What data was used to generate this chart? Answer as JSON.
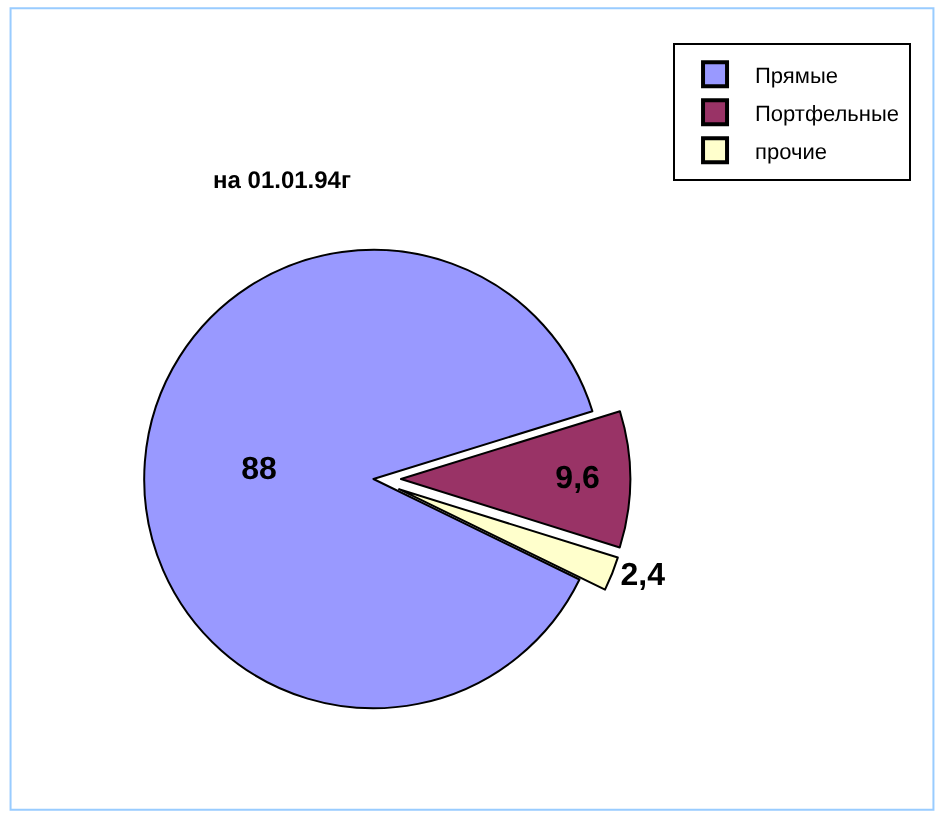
{
  "chart_data": {
    "type": "pie",
    "title": "на 01.01.94г",
    "categories": [
      "Прямые",
      "Портфельные",
      "прочие"
    ],
    "values": [
      88,
      9.6,
      2.4
    ],
    "value_labels": [
      "88",
      "9,6",
      "2,4"
    ],
    "colors": [
      "#9999ff",
      "#993366",
      "#ffffcc"
    ],
    "legend": "top right"
  }
}
